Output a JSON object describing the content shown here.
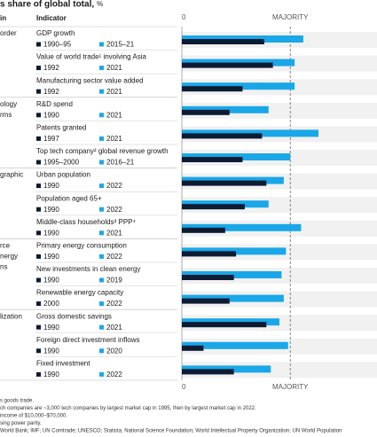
{
  "chart_data": {
    "type": "bar",
    "title": "s share of global total,",
    "title_unit": "%",
    "header_group": "in",
    "header_indicator": "Indicator",
    "colors": [
      "#0d1b33",
      "#1aa7e8"
    ],
    "xlim": [
      0,
      90
    ],
    "xticks": [
      0,
      {
        "value": 50,
        "label": "MAJORITY"
      }
    ],
    "groups": [
      {
        "label_lines": [
          "order"
        ],
        "indicators": [
          {
            "name": "GDP growth",
            "years": [
              "1990–95",
              "2015–21"
            ],
            "values": [
              38,
              56
            ]
          },
          {
            "name": "Value of world trade¹ involving Asia",
            "years": [
              "1992",
              "2021"
            ],
            "values": [
              42,
              52
            ]
          },
          {
            "name": "Manufacturing sector value added",
            "years": [
              "1992",
              "2021"
            ],
            "values": [
              28,
              52
            ]
          }
        ]
      },
      {
        "label_lines": [
          "ology",
          "rms"
        ],
        "indicators": [
          {
            "name": "R&D spend",
            "years": [
              "1990",
              "2021"
            ],
            "values": [
              22,
              40
            ]
          },
          {
            "name": "Patents granted",
            "years": [
              "1997",
              "2021"
            ],
            "values": [
              37,
              63
            ]
          },
          {
            "name": "Top tech company² global revenue growth",
            "years": [
              "1995–2000",
              "2016–21"
            ],
            "values": [
              28,
              50
            ]
          }
        ]
      },
      {
        "label_lines": [
          "graphic"
        ],
        "indicators": [
          {
            "name": "Urban population",
            "years": [
              "1990",
              "2022"
            ],
            "values": [
              39,
              47
            ]
          },
          {
            "name": "Population aged 65+",
            "years": [
              "1990",
              "2022"
            ],
            "values": [
              29,
              40
            ]
          },
          {
            "name": "Middle-class households³ PPP⁴",
            "years": [
              "1990",
              "2021"
            ],
            "values": [
              20,
              55
            ]
          }
        ]
      },
      {
        "label_lines": [
          "rce",
          "nergy",
          "ns"
        ],
        "indicators": [
          {
            "name": "Primary energy consumption",
            "years": [
              "1990",
              "2022"
            ],
            "values": [
              25,
              48
            ]
          },
          {
            "name": "New investments in clean energy",
            "years": [
              "1990",
              "2019"
            ],
            "values": [
              24,
              46
            ]
          },
          {
            "name": "Renewable energy capacity",
            "years": [
              "2000",
              "2022"
            ],
            "values": [
              22,
              47
            ]
          }
        ]
      },
      {
        "label_lines": [
          "lization"
        ],
        "indicators": [
          {
            "name": "Gross domestic savings",
            "years": [
              "1990",
              "2021"
            ],
            "values": [
              39,
              45
            ]
          },
          {
            "name": "Foreign direct investment inflows",
            "years": [
              "1990",
              "2020"
            ],
            "values": [
              10,
              49
            ]
          },
          {
            "name": "Fixed investment",
            "years": [
              "1990",
              "2022"
            ],
            "values": [
              24,
              41
            ]
          }
        ]
      }
    ],
    "notes": [
      "s goods trade.",
      "ch companies are ~3,000 tech companies by largest market cap in 1995, then by largest market cap in 2022.",
      "income of $10,000–$70,000.",
      "sing power parity.",
      "World Bank; IMF; UN Comtrade; UNESCO; Statista; National Science Foundation; World Intellectual Property Organization; UN World Population"
    ]
  }
}
